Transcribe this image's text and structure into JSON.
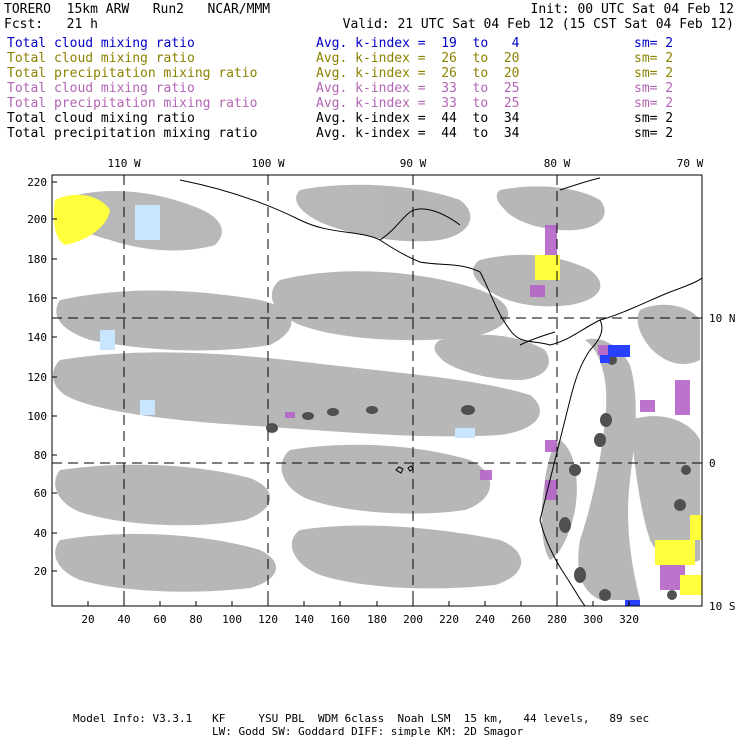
{
  "header": {
    "model": "TORERO  15km ARW   Run2   NCAR/MMM",
    "init": "Init: 00 UTC Sat 04 Feb 12",
    "fcst": "Fcst:   21 h",
    "valid": "Valid: 21 UTC Sat 04 Feb 12 (15 CST Sat 04 Feb 12)"
  },
  "legend": [
    {
      "field": "Total cloud mixing ratio",
      "kindex": "Avg. k-index =  19  to   4",
      "sm": "sm= 2",
      "color": "#0000c8"
    },
    {
      "field": "Total cloud mixing ratio",
      "kindex": "Avg. k-index =  26  to  20",
      "sm": "sm= 2",
      "color": "#8c8200"
    },
    {
      "field": "Total precipitation mixing ratio",
      "kindex": "Avg. k-index =  26  to  20",
      "sm": "sm= 2",
      "color": "#8c8200"
    },
    {
      "field": "Total cloud mixing ratio",
      "kindex": "Avg. k-index =  33  to  25",
      "sm": "sm= 2",
      "color": "#b464b4"
    },
    {
      "field": "Total precipitation mixing ratio",
      "kindex": "Avg. k-index =  33  to  25",
      "sm": "sm= 2",
      "color": "#b464b4"
    },
    {
      "field": "Total cloud mixing ratio",
      "kindex": "Avg. k-index =  44  to  34",
      "sm": "sm= 2",
      "color": "#000000"
    },
    {
      "field": "Total precipitation mixing ratio",
      "kindex": "Avg. k-index =  44  to  34",
      "sm": "sm= 2",
      "color": "#000000"
    }
  ],
  "axes": {
    "x_ticks": [
      "20",
      "40",
      "60",
      "80",
      "100",
      "120",
      "140",
      "160",
      "180",
      "200",
      "220",
      "240",
      "260",
      "280",
      "300",
      "320"
    ],
    "y_ticks": [
      "220",
      "200",
      "180",
      "160",
      "140",
      "120",
      "100",
      "80",
      "60",
      "40",
      "20"
    ],
    "lon_labels": [
      "110 W",
      "100 W",
      "90 W",
      "80 W",
      "70 W"
    ],
    "lat_labels": [
      "10 N",
      "0",
      "10 S"
    ]
  },
  "footer": {
    "line1": "Model Info: V3.3.1   KF     YSU PBL  WDM 6class  Noah LSM  15 km,   44 levels,   89 sec",
    "line2": "LW: Godd SW: Goddard DIFF: simple KM: 2D Smagor"
  }
}
